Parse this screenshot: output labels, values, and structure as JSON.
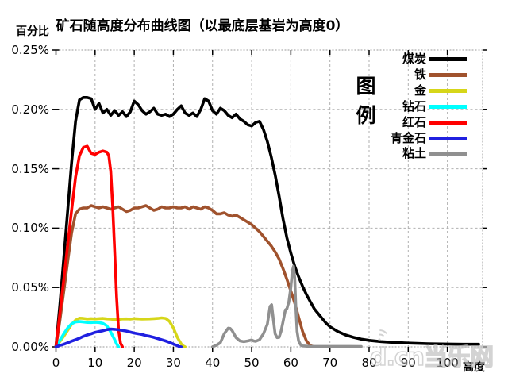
{
  "title": "矿石随高度分布曲线图（以最底层基岩为高度0）",
  "y_axis_label": "百分比",
  "x_axis_label": "高度",
  "legend_title": "图例",
  "watermark": "d.cn当乐网",
  "chart_data": {
    "type": "line",
    "title": "矿石随高度分布曲线图（以最底层基岩为高度0）",
    "xlabel": "高度",
    "ylabel": "百分比",
    "xlim": [
      0,
      109
    ],
    "ylim": [
      0,
      0.25
    ],
    "x_ticks": [
      0,
      10,
      20,
      30,
      40,
      50,
      60,
      70,
      80,
      90,
      100
    ],
    "y_ticks": [
      0,
      0.05,
      0.1,
      0.15,
      0.2,
      0.25
    ],
    "y_tick_labels": [
      "0.00%",
      "0.05%",
      "0.10%",
      "0.15%",
      "0.20%",
      "0.25%"
    ],
    "grid": true,
    "legend_position": "right-overlay",
    "series": [
      {
        "name": "煤炭",
        "color": "#000000",
        "points": [
          [
            0,
            0
          ],
          [
            1,
            0.035
          ],
          [
            2,
            0.075
          ],
          [
            3,
            0.115
          ],
          [
            4,
            0.155
          ],
          [
            5,
            0.19
          ],
          [
            6,
            0.208
          ],
          [
            7,
            0.21
          ],
          [
            8,
            0.21
          ],
          [
            9,
            0.209
          ],
          [
            10,
            0.2
          ],
          [
            11,
            0.205
          ],
          [
            12,
            0.197
          ],
          [
            13,
            0.2
          ],
          [
            14,
            0.195
          ],
          [
            15,
            0.199
          ],
          [
            16,
            0.195
          ],
          [
            17,
            0.198
          ],
          [
            18,
            0.194
          ],
          [
            19,
            0.198
          ],
          [
            20,
            0.207
          ],
          [
            21,
            0.204
          ],
          [
            22,
            0.199
          ],
          [
            23,
            0.196
          ],
          [
            24,
            0.198
          ],
          [
            25,
            0.201
          ],
          [
            26,
            0.196
          ],
          [
            27,
            0.195
          ],
          [
            28,
            0.196
          ],
          [
            29,
            0.194
          ],
          [
            30,
            0.196
          ],
          [
            31,
            0.2
          ],
          [
            32,
            0.203
          ],
          [
            33,
            0.197
          ],
          [
            34,
            0.195
          ],
          [
            35,
            0.197
          ],
          [
            36,
            0.194
          ],
          [
            37,
            0.2
          ],
          [
            38,
            0.209
          ],
          [
            39,
            0.207
          ],
          [
            40,
            0.199
          ],
          [
            41,
            0.196
          ],
          [
            42,
            0.201
          ],
          [
            43,
            0.199
          ],
          [
            44,
            0.195
          ],
          [
            45,
            0.193
          ],
          [
            46,
            0.196
          ],
          [
            47,
            0.192
          ],
          [
            48,
            0.19
          ],
          [
            49,
            0.187
          ],
          [
            50,
            0.186
          ],
          [
            51,
            0.189
          ],
          [
            52,
            0.19
          ],
          [
            53,
            0.183
          ],
          [
            54,
            0.173
          ],
          [
            55,
            0.16
          ],
          [
            56,
            0.145
          ],
          [
            57,
            0.127
          ],
          [
            58,
            0.108
          ],
          [
            59,
            0.092
          ],
          [
            60,
            0.079
          ],
          [
            61,
            0.068
          ],
          [
            62,
            0.059
          ],
          [
            63,
            0.051
          ],
          [
            64,
            0.044
          ],
          [
            65,
            0.038
          ],
          [
            66,
            0.032
          ],
          [
            67,
            0.028
          ],
          [
            68,
            0.024
          ],
          [
            69,
            0.02
          ],
          [
            70,
            0.017
          ],
          [
            72,
            0.013
          ],
          [
            74,
            0.01
          ],
          [
            76,
            0.008
          ],
          [
            78,
            0.0065
          ],
          [
            80,
            0.0055
          ],
          [
            83,
            0.0045
          ],
          [
            86,
            0.0038
          ],
          [
            90,
            0.0032
          ],
          [
            95,
            0.0027
          ],
          [
            100,
            0.0024
          ],
          [
            104,
            0.0022
          ],
          [
            108,
            0.0022
          ]
        ]
      },
      {
        "name": "铁",
        "color": "#a0522d",
        "points": [
          [
            0,
            0
          ],
          [
            1,
            0.022
          ],
          [
            2,
            0.047
          ],
          [
            3,
            0.072
          ],
          [
            4,
            0.096
          ],
          [
            5,
            0.112
          ],
          [
            6,
            0.116
          ],
          [
            7,
            0.117
          ],
          [
            8,
            0.117
          ],
          [
            9,
            0.119
          ],
          [
            10,
            0.118
          ],
          [
            11,
            0.117
          ],
          [
            12,
            0.118
          ],
          [
            13,
            0.117
          ],
          [
            14,
            0.116
          ],
          [
            15,
            0.117
          ],
          [
            16,
            0.118
          ],
          [
            17,
            0.116
          ],
          [
            18,
            0.114
          ],
          [
            19,
            0.115
          ],
          [
            20,
            0.117
          ],
          [
            21,
            0.117
          ],
          [
            22,
            0.118
          ],
          [
            23,
            0.119
          ],
          [
            24,
            0.117
          ],
          [
            25,
            0.115
          ],
          [
            26,
            0.116
          ],
          [
            27,
            0.118
          ],
          [
            28,
            0.117
          ],
          [
            29,
            0.117
          ],
          [
            30,
            0.118
          ],
          [
            31,
            0.117
          ],
          [
            32,
            0.117
          ],
          [
            33,
            0.118
          ],
          [
            34,
            0.116
          ],
          [
            35,
            0.118
          ],
          [
            36,
            0.117
          ],
          [
            37,
            0.116
          ],
          [
            38,
            0.118
          ],
          [
            39,
            0.117
          ],
          [
            40,
            0.115
          ],
          [
            41,
            0.112
          ],
          [
            42,
            0.112
          ],
          [
            43,
            0.113
          ],
          [
            44,
            0.111
          ],
          [
            45,
            0.11
          ],
          [
            46,
            0.111
          ],
          [
            47,
            0.109
          ],
          [
            48,
            0.107
          ],
          [
            49,
            0.105
          ],
          [
            50,
            0.103
          ],
          [
            51,
            0.1
          ],
          [
            52,
            0.097
          ],
          [
            53,
            0.093
          ],
          [
            54,
            0.089
          ],
          [
            55,
            0.085
          ],
          [
            56,
            0.08
          ],
          [
            57,
            0.074
          ],
          [
            58,
            0.066
          ],
          [
            59,
            0.057
          ],
          [
            60,
            0.047
          ],
          [
            61,
            0.037
          ],
          [
            62,
            0.025
          ],
          [
            63,
            0.013
          ],
          [
            64,
            0.005
          ],
          [
            65,
            0.001
          ],
          [
            66,
            0
          ]
        ]
      },
      {
        "name": "金",
        "color": "#d6d619",
        "points": [
          [
            0,
            0
          ],
          [
            1,
            0.0045
          ],
          [
            2,
            0.009
          ],
          [
            3,
            0.014
          ],
          [
            4,
            0.019
          ],
          [
            5,
            0.0225
          ],
          [
            6,
            0.0242
          ],
          [
            7,
            0.024
          ],
          [
            8,
            0.0235
          ],
          [
            9,
            0.0238
          ],
          [
            10,
            0.0235
          ],
          [
            11,
            0.0238
          ],
          [
            12,
            0.024
          ],
          [
            13,
            0.0236
          ],
          [
            14,
            0.0234
          ],
          [
            15,
            0.023
          ],
          [
            16,
            0.0232
          ],
          [
            17,
            0.0235
          ],
          [
            18,
            0.0236
          ],
          [
            19,
            0.0234
          ],
          [
            20,
            0.0238
          ],
          [
            21,
            0.0236
          ],
          [
            22,
            0.0234
          ],
          [
            23,
            0.0235
          ],
          [
            24,
            0.0236
          ],
          [
            25,
            0.0238
          ],
          [
            26,
            0.024
          ],
          [
            27,
            0.0244
          ],
          [
            28,
            0.024
          ],
          [
            29,
            0.0215
          ],
          [
            30,
            0.016
          ],
          [
            31,
            0.008
          ],
          [
            32,
            0.0025
          ],
          [
            32.5,
            0.0008
          ],
          [
            33,
            0
          ]
        ]
      },
      {
        "name": "钻石",
        "color": "#00ffff",
        "points": [
          [
            0,
            0
          ],
          [
            1,
            0.0055
          ],
          [
            2,
            0.011
          ],
          [
            3,
            0.016
          ],
          [
            4,
            0.0195
          ],
          [
            5,
            0.021
          ],
          [
            6,
            0.0213
          ],
          [
            7,
            0.021
          ],
          [
            8,
            0.0206
          ],
          [
            9,
            0.0205
          ],
          [
            10,
            0.0208
          ],
          [
            11,
            0.0205
          ],
          [
            12,
            0.0198
          ],
          [
            13,
            0.0178
          ],
          [
            14,
            0.0125
          ],
          [
            15,
            0.006
          ],
          [
            15.5,
            0.0025
          ],
          [
            16,
            0
          ]
        ]
      },
      {
        "name": "红石",
        "color": "#ff0000",
        "points": [
          [
            0,
            0
          ],
          [
            1,
            0.028
          ],
          [
            2,
            0.057
          ],
          [
            3,
            0.086
          ],
          [
            4,
            0.115
          ],
          [
            5,
            0.143
          ],
          [
            6,
            0.161
          ],
          [
            7,
            0.168
          ],
          [
            8,
            0.169
          ],
          [
            9,
            0.163
          ],
          [
            10,
            0.162
          ],
          [
            11,
            0.164
          ],
          [
            12,
            0.165
          ],
          [
            13,
            0.164
          ],
          [
            13.5,
            0.161
          ],
          [
            14,
            0.148
          ],
          [
            14.5,
            0.118
          ],
          [
            15,
            0.08
          ],
          [
            15.5,
            0.042
          ],
          [
            16,
            0.014
          ],
          [
            16.5,
            0.003
          ],
          [
            17,
            0
          ]
        ]
      },
      {
        "name": "青金石",
        "color": "#2020e0",
        "points": [
          [
            0,
            0
          ],
          [
            1,
            0.0012
          ],
          [
            2,
            0.0022
          ],
          [
            3,
            0.0035
          ],
          [
            4,
            0.0048
          ],
          [
            5,
            0.006
          ],
          [
            6,
            0.0073
          ],
          [
            7,
            0.0088
          ],
          [
            8,
            0.01
          ],
          [
            9,
            0.011
          ],
          [
            10,
            0.0122
          ],
          [
            11,
            0.013
          ],
          [
            12,
            0.0136
          ],
          [
            13,
            0.0145
          ],
          [
            14,
            0.015
          ],
          [
            15,
            0.0148
          ],
          [
            16,
            0.0144
          ],
          [
            17,
            0.0139
          ],
          [
            18,
            0.0133
          ],
          [
            19,
            0.0124
          ],
          [
            20,
            0.0116
          ],
          [
            21,
            0.011
          ],
          [
            22,
            0.0104
          ],
          [
            23,
            0.0095
          ],
          [
            24,
            0.0089
          ],
          [
            25,
            0.008
          ],
          [
            26,
            0.007
          ],
          [
            27,
            0.006
          ],
          [
            28,
            0.005
          ],
          [
            29,
            0.0038
          ],
          [
            30,
            0.0024
          ],
          [
            31,
            0.001
          ],
          [
            31.5,
            0.0003
          ],
          [
            32,
            0
          ]
        ]
      },
      {
        "name": "粘土",
        "color": "#909090",
        "points": [
          [
            40,
            0
          ],
          [
            41,
            0.0015
          ],
          [
            42,
            0.0035
          ],
          [
            43,
            0.011
          ],
          [
            44,
            0.0158
          ],
          [
            44.5,
            0.0155
          ],
          [
            45,
            0.0138
          ],
          [
            46,
            0.0078
          ],
          [
            47,
            0.005
          ],
          [
            48,
            0.0044
          ],
          [
            49,
            0.005
          ],
          [
            50,
            0.0058
          ],
          [
            50.5,
            0.005
          ],
          [
            51,
            0.0047
          ],
          [
            52,
            0.006
          ],
          [
            53,
            0.011
          ],
          [
            54,
            0.019
          ],
          [
            54.7,
            0.034
          ],
          [
            55.1,
            0.0355
          ],
          [
            55.5,
            0.024
          ],
          [
            56,
            0.011
          ],
          [
            56.5,
            0.0078
          ],
          [
            57,
            0.008
          ],
          [
            57.5,
            0.013
          ],
          [
            58,
            0.021
          ],
          [
            58.6,
            0.031
          ],
          [
            59,
            0.032
          ],
          [
            59.5,
            0.038
          ],
          [
            60,
            0.05
          ],
          [
            60.4,
            0.064
          ],
          [
            60.7,
            0.068
          ],
          [
            61,
            0.058
          ],
          [
            61.3,
            0.032
          ],
          [
            61.6,
            0.013
          ],
          [
            62,
            0.005
          ],
          [
            62.5,
            0.0018
          ],
          [
            63,
            0.0008
          ],
          [
            65,
            0.0004
          ],
          [
            70,
            0.0004
          ],
          [
            75,
            0.0004
          ],
          [
            78,
            0.0003
          ]
        ]
      }
    ],
    "colors": {
      "煤炭": "#000000",
      "铁": "#a0522d",
      "金": "#d6d619",
      "钻石": "#00ffff",
      "红石": "#ff0000",
      "青金石": "#2020e0",
      "粘土": "#909090",
      "grid": "#b0b0b0",
      "border": "#999999",
      "tick": "#000000"
    }
  }
}
